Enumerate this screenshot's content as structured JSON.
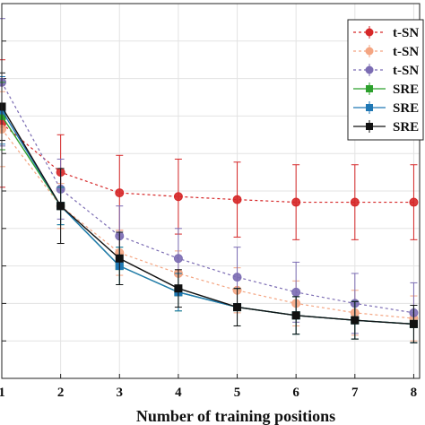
{
  "chart_data": {
    "type": "line",
    "xlabel": "Number of training positions",
    "ylabel": "",
    "title": "",
    "x": [
      1,
      2,
      3,
      4,
      5,
      6,
      7,
      8
    ],
    "xlim": [
      1,
      8.1
    ],
    "ylim": [
      0,
      1
    ],
    "grid": true,
    "legend_position": "top-right",
    "series": [
      {
        "name": "t-SN",
        "color": "#d62728",
        "marker": "circle",
        "dashed": true,
        "values": [
          0.68,
          0.55,
          0.495,
          0.485,
          0.477,
          0.47,
          0.47,
          0.47
        ],
        "errors": [
          0.17,
          0.1,
          0.1,
          0.1,
          0.1,
          0.1,
          0.1,
          0.1
        ]
      },
      {
        "name": "t-SN",
        "color": "#f4a582",
        "marker": "circle",
        "dashed": true,
        "values": [
          0.665,
          0.46,
          0.335,
          0.28,
          0.235,
          0.2,
          0.175,
          0.16
        ],
        "errors": [
          0.1,
          0.06,
          0.06,
          0.06,
          0.06,
          0.06,
          0.06,
          0.06
        ]
      },
      {
        "name": "t-SN",
        "color": "#7b6cb3",
        "marker": "circle",
        "dashed": true,
        "values": [
          0.79,
          0.505,
          0.38,
          0.32,
          0.27,
          0.23,
          0.2,
          0.175
        ],
        "errors": [
          0.17,
          0.08,
          0.08,
          0.08,
          0.08,
          0.08,
          0.08,
          0.08
        ]
      },
      {
        "name": "SRE",
        "color": "#2ca02c",
        "marker": "square",
        "dashed": false,
        "values": [
          0.7,
          0.46,
          0.3,
          0.23,
          0.19,
          0.168,
          0.155,
          0.145
        ],
        "errors": [
          0.09,
          0.05,
          0.05,
          0.05,
          0.05,
          0.05,
          0.05,
          0.05
        ]
      },
      {
        "name": "SRE",
        "color": "#1f77b4",
        "marker": "square",
        "dashed": false,
        "values": [
          0.715,
          0.46,
          0.3,
          0.23,
          0.19,
          0.168,
          0.155,
          0.145
        ],
        "errors": [
          0.09,
          0.05,
          0.05,
          0.05,
          0.05,
          0.05,
          0.05,
          0.05
        ]
      },
      {
        "name": "SRE",
        "color": "#111111",
        "marker": "square",
        "dashed": false,
        "values": [
          0.725,
          0.46,
          0.32,
          0.24,
          0.19,
          0.168,
          0.155,
          0.145
        ],
        "errors": [
          0.09,
          0.1,
          0.07,
          0.05,
          0.05,
          0.05,
          0.05,
          0.05
        ]
      }
    ]
  }
}
